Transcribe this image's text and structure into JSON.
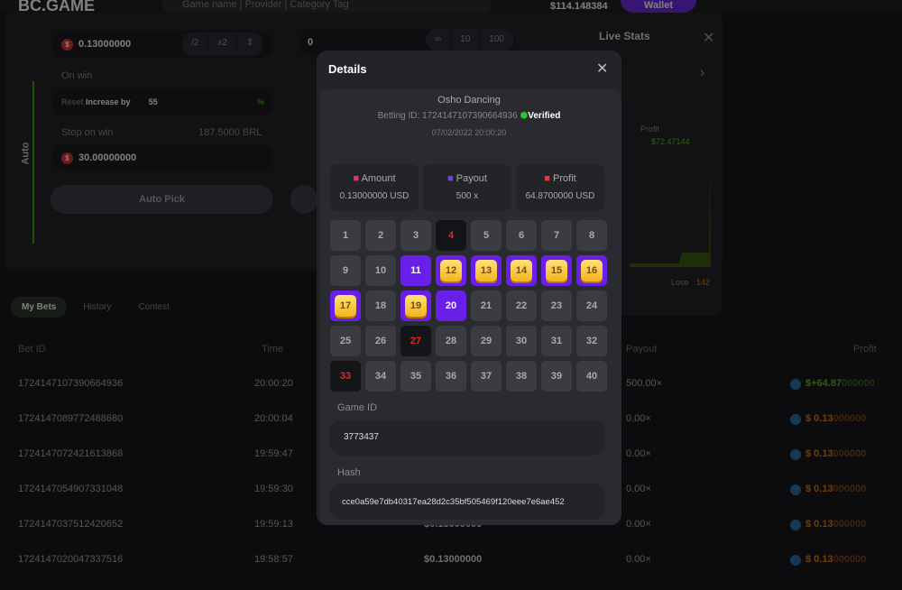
{
  "header": {
    "logo": "BC.GAME",
    "search_placeholder": "Game name | Provider | Category Tag",
    "balance": "$114.148384",
    "wallet": "Wallet"
  },
  "controls": {
    "amount": "0.13000000",
    "amount_btns": [
      "/2",
      "x2",
      "⇕"
    ],
    "bets_value": "0",
    "bets_btns": [
      "∞",
      "10",
      "100"
    ],
    "on_win": "On win",
    "reset": "Reset",
    "increase_by": "Increase by",
    "increase_value": "55",
    "percent": "%",
    "stop_on_win": "Stop on win",
    "stop_brl": "187.5000 BRL",
    "stop_value": "30.00000000",
    "auto_pick": "Auto Pick",
    "mode": "Auto"
  },
  "live_stats": {
    "title": "Live Stats",
    "profit_label": "Profit",
    "profit_value": "$72.47144",
    "lose_label": "Lose",
    "lose_value": "142"
  },
  "tabs": [
    "My Bets",
    "History",
    "Contest"
  ],
  "table": {
    "headers": {
      "bet_id": "Bet ID",
      "time": "Time",
      "payout": "Payout",
      "profit": "Profit"
    },
    "rows": [
      {
        "id": "1724147107390664936",
        "time": "20:00:20",
        "amount": "",
        "payout": "500.00×",
        "profit": "$+64.87",
        "profit_tail": "000000",
        "win": true
      },
      {
        "id": "1724147089772488680",
        "time": "20:00:04",
        "amount": "",
        "payout": "0.00×",
        "profit": "$ 0.13",
        "profit_tail": "000000",
        "win": false
      },
      {
        "id": "1724147072421613868",
        "time": "19:59:47",
        "amount": "",
        "payout": "0.00×",
        "profit": "$ 0.13",
        "profit_tail": "000000",
        "win": false
      },
      {
        "id": "1724147054907331048",
        "time": "19:59:30",
        "amount": "",
        "payout": "0.00×",
        "profit": "$ 0.13",
        "profit_tail": "000000",
        "win": false
      },
      {
        "id": "1724147037512420652",
        "time": "19:59:13",
        "amount": "$0.13000000",
        "payout": "0.00×",
        "profit": "$ 0.13",
        "profit_tail": "000000",
        "win": false
      },
      {
        "id": "1724147020047337516",
        "time": "19:58:57",
        "amount": "$0.13000000",
        "payout": "0.00×",
        "profit": "$ 0.13",
        "profit_tail": "000000",
        "win": false
      }
    ]
  },
  "modal": {
    "title": "Details",
    "game": "Osho Dancing",
    "betting_id": "Betting ID: 1724147107390664936",
    "verified": "Verified",
    "date": "07/02/2022 20:00:20",
    "cards": [
      {
        "label": "Amount",
        "value": "0.13000000 USD",
        "color": "#e8336a"
      },
      {
        "label": "Payout",
        "value": "500 x",
        "color": "#7b3cf0"
      },
      {
        "label": "Profit",
        "value": "64.8700000 USD",
        "color": "#e33"
      }
    ],
    "hits": [
      12,
      13,
      14,
      15,
      16,
      17,
      19
    ],
    "picks_no_hit": [
      11,
      20
    ],
    "misses": [
      4,
      27,
      33
    ],
    "game_id_label": "Game ID",
    "game_id": "3773437",
    "hash_label": "Hash",
    "hash": "cce0a59e7db40317ea28d2c35bf505469f120eee7e6ae452"
  }
}
